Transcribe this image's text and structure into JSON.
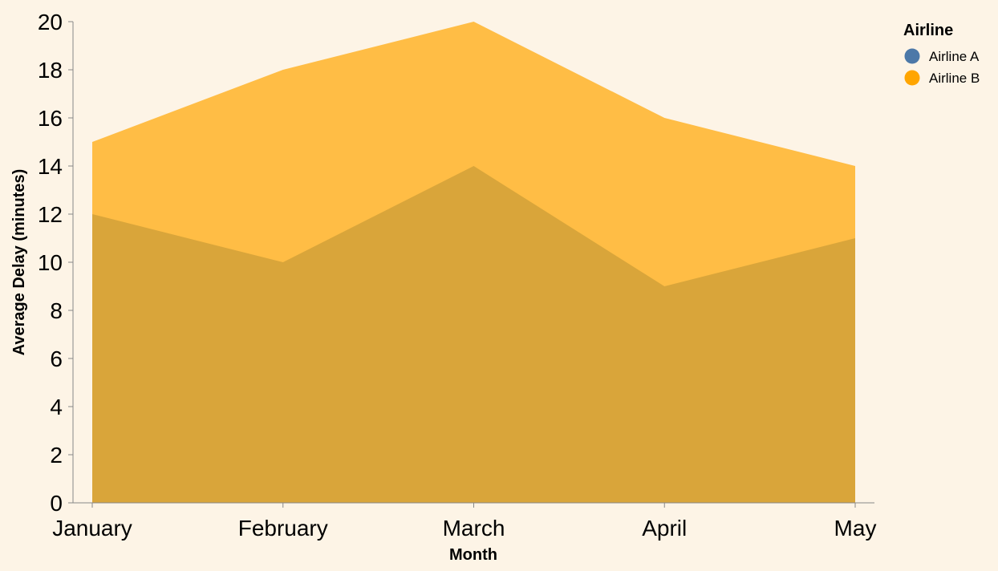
{
  "chart_data": {
    "type": "area",
    "categories": [
      "January",
      "February",
      "March",
      "April",
      "May"
    ],
    "series": [
      {
        "name": "Airline A",
        "values": [
          12,
          10,
          14,
          9,
          11
        ],
        "color": "#4c78a8"
      },
      {
        "name": "Airline B",
        "values": [
          15,
          18,
          20,
          16,
          14
        ],
        "color": "#ffa500"
      }
    ],
    "overlap_color": "#d9a53a",
    "area_opacity": 0.7,
    "xlabel": "Month",
    "ylabel": "Average Delay (minutes)",
    "ylim": [
      0,
      20
    ],
    "yticks": [
      0,
      2,
      4,
      6,
      8,
      10,
      12,
      14,
      16,
      18,
      20
    ],
    "grid": false,
    "legend": {
      "title": "Airline",
      "placement": "top-right"
    },
    "background": "#fdf4e6",
    "axis_color": "#888888"
  }
}
